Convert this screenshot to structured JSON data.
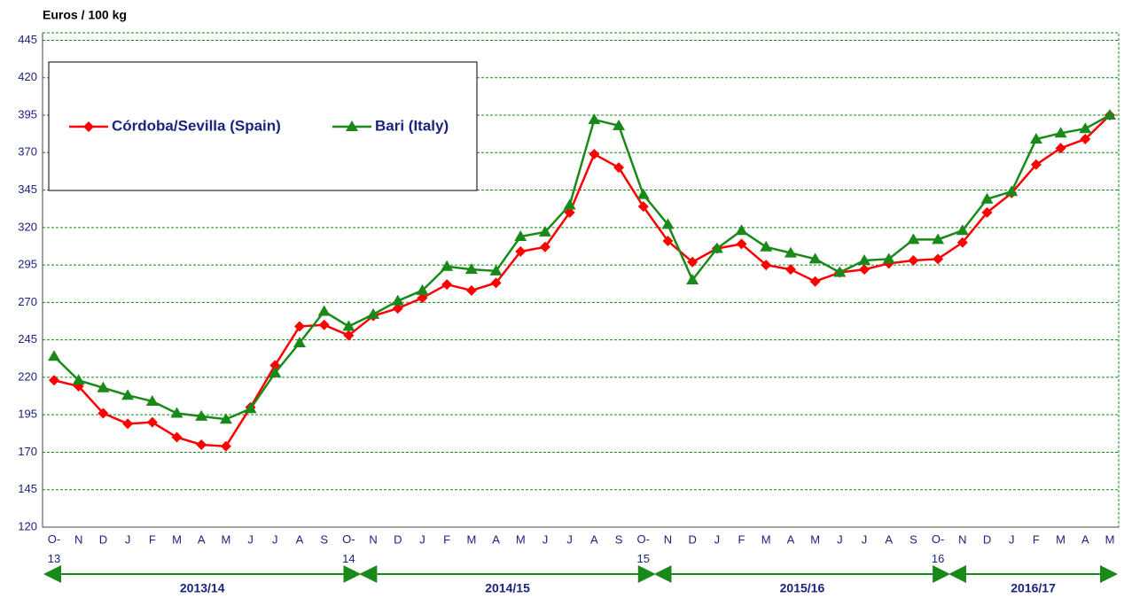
{
  "chart_data": {
    "type": "line",
    "y_axis_label": "Euros / 100 kg",
    "categories": [
      "O- 13",
      "N",
      "D",
      "J",
      "F",
      "M",
      "A",
      "M",
      "J",
      "J",
      "A",
      "S",
      "O- 14",
      "N",
      "D",
      "J",
      "F",
      "M",
      "A",
      "M",
      "J",
      "J",
      "A",
      "S",
      "O- 15",
      "N",
      "D",
      "J",
      "F",
      "M",
      "A",
      "M",
      "J",
      "J",
      "A",
      "S",
      "O- 16",
      "N",
      "D",
      "J",
      "F",
      "M",
      "A",
      "M"
    ],
    "series": [
      {
        "name": "Córdoba/Sevilla (Spain)",
        "color": "#ff0000",
        "marker": "diamond",
        "values": [
          218,
          214,
          196,
          189,
          190,
          180,
          175,
          174,
          200,
          228,
          254,
          255,
          248,
          261,
          266,
          273,
          282,
          278,
          283,
          304,
          307,
          330,
          369,
          360,
          334,
          311,
          297,
          306,
          309,
          295,
          292,
          284,
          290,
          292,
          296,
          298,
          299,
          310,
          330,
          343,
          362,
          373,
          379,
          395
        ]
      },
      {
        "name": "Bari (Italy)",
        "color": "#198a19",
        "marker": "triangle",
        "values": [
          234,
          218,
          213,
          208,
          204,
          196,
          194,
          192,
          199,
          223,
          243,
          264,
          254,
          262,
          271,
          278,
          294,
          292,
          291,
          314,
          317,
          335,
          392,
          388,
          342,
          322,
          285,
          306,
          318,
          307,
          303,
          299,
          290,
          298,
          299,
          312,
          312,
          318,
          339,
          344,
          379,
          383,
          386,
          395
        ]
      }
    ],
    "seasons": [
      "2013/14",
      "2014/15",
      "2015/16",
      "2016/17"
    ],
    "ylim": [
      120,
      450
    ],
    "yticks": [
      120,
      145,
      170,
      195,
      220,
      245,
      270,
      295,
      320,
      345,
      370,
      395,
      420,
      445
    ],
    "grid": true,
    "legend": "upper left"
  }
}
